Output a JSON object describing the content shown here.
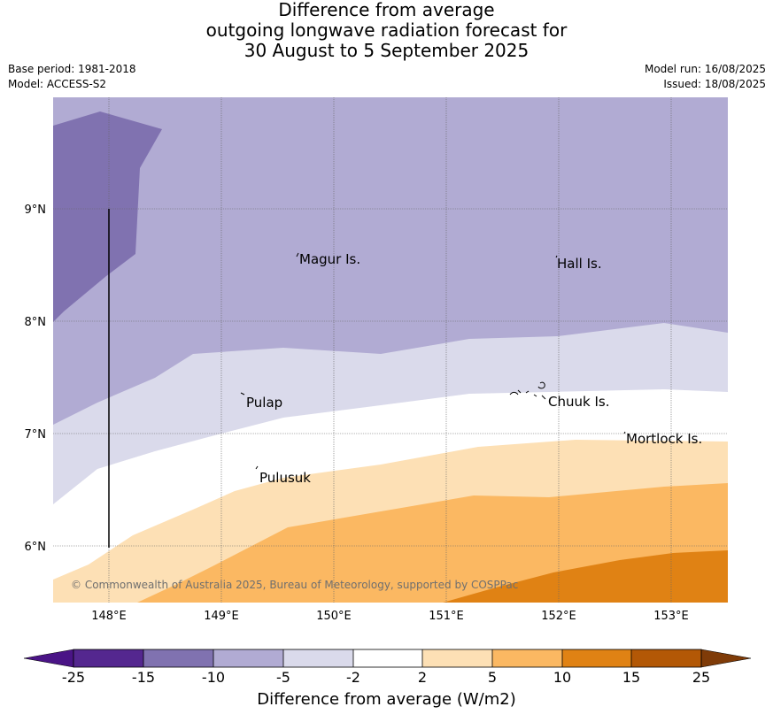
{
  "title": {
    "line1": "Difference from average",
    "line2": "outgoing longwave radiation forecast for",
    "line3": "30 August to 5 September 2025"
  },
  "meta_left": {
    "base_period": "Base period: 1981-2018",
    "model": "Model: ACCESS-S2"
  },
  "meta_right": {
    "model_run": "Model run: 16/08/2025",
    "issued": "Issued: 18/08/2025"
  },
  "map": {
    "lat_ticks": [
      "9°N",
      "8°N",
      "7°N",
      "6°N"
    ],
    "lon_ticks": [
      "148°E",
      "149°E",
      "150°E",
      "151°E",
      "152°E",
      "153°E"
    ],
    "places": [
      "Magur Is.",
      "Hall Is.",
      "Pulap",
      "Chuuk Is.",
      "Mortlock Is.",
      "Pulusuk"
    ],
    "credit": "© Commonwealth of Australia 2025, Bureau of Meteorology, supported by COSPPac"
  },
  "colorbar": {
    "tick_labels": [
      "-25",
      "-15",
      "-10",
      "-5",
      "-2",
      "2",
      "5",
      "10",
      "15",
      "25"
    ],
    "colors": [
      "#4a1486",
      "#54278f",
      "#8072b0",
      "#b1abd3",
      "#dadaeb",
      "#ffffff",
      "#fde0b5",
      "#fbb862",
      "#e08214",
      "#b35806",
      "#7f3b08"
    ],
    "title": "Difference from average (W/m2)"
  }
}
